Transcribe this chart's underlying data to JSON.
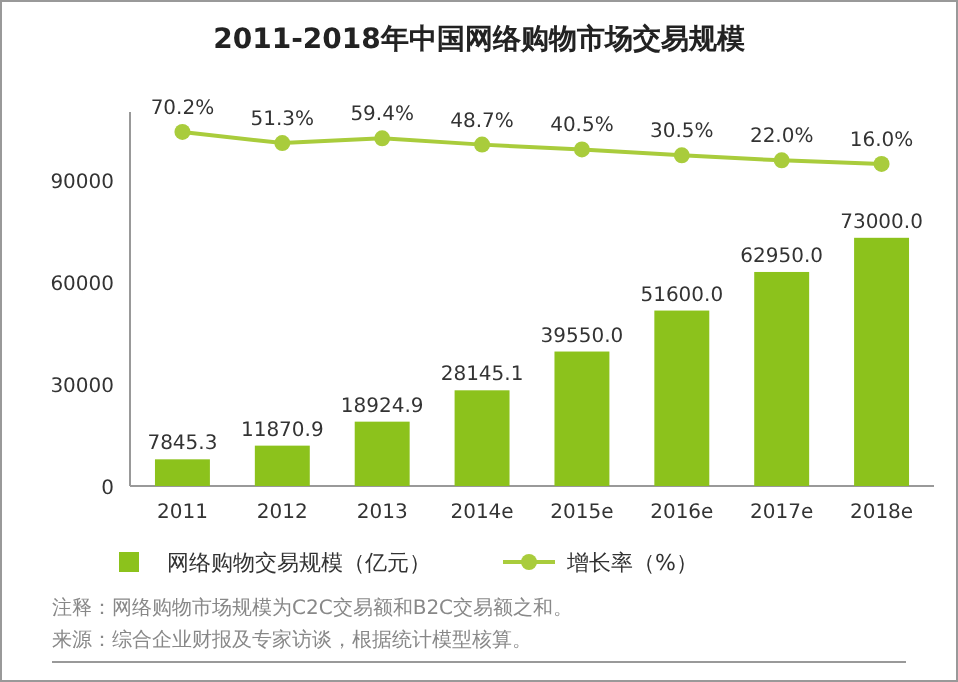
{
  "chart_data": {
    "type": "bar",
    "title": "2011-2018年中国网络购物市场交易规模",
    "categories": [
      "2011",
      "2012",
      "2013",
      "2014e",
      "2015e",
      "2016e",
      "2017e",
      "2018e"
    ],
    "series": [
      {
        "name": "网络购物交易规模（亿元）",
        "color": "#8cc21c",
        "values": [
          7845.3,
          11870.9,
          18924.9,
          28145.1,
          39550.0,
          51600.0,
          62950.0,
          73000.0
        ],
        "value_labels": [
          "7845.3",
          "11870.9",
          "18924.9",
          "28145.1",
          "39550.0",
          "51600.0",
          "62950.0",
          "73000.0"
        ]
      },
      {
        "name": "增长率（%）",
        "type": "line",
        "axis": "y2",
        "color": "#a9cc3c",
        "marker": "circle",
        "values": [
          70.2,
          51.3,
          59.4,
          48.7,
          40.5,
          30.5,
          22.0,
          16.0
        ],
        "value_labels": [
          "70.2%",
          "51.3%",
          "59.4%",
          "48.7%",
          "40.5%",
          "30.5%",
          "22.0%",
          "16.0%"
        ]
      }
    ],
    "ylim": [
      0,
      110000
    ],
    "yticks": [
      0,
      30000,
      60000,
      90000
    ],
    "y2lim": [
      -530,
      104
    ],
    "grid": false,
    "legend": "bottom",
    "annotations": [
      "注释：网络购物市场规模为C2C交易额和B2C交易额之和。",
      "来源：综合企业财报及专家访谈，根据统计模型核算。"
    ]
  }
}
